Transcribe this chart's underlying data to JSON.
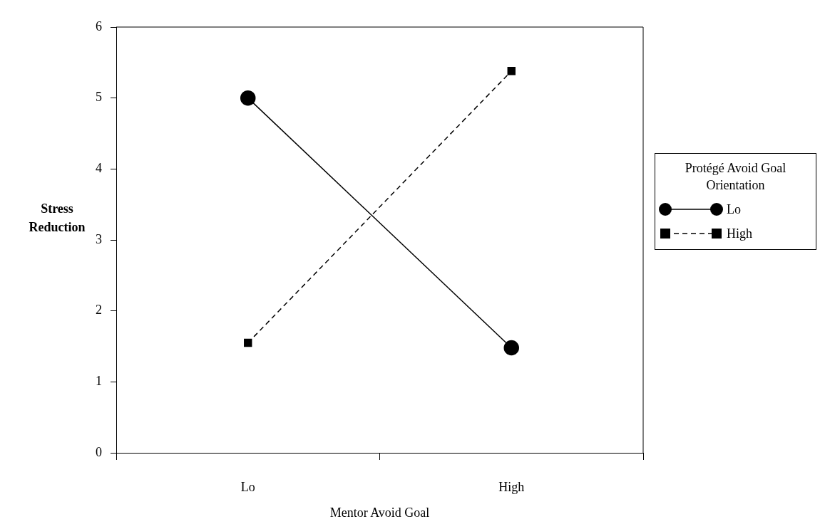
{
  "chart_data": {
    "type": "line",
    "xlabel": "Mentor Avoid Goal",
    "ylabel": "Stress Reduction",
    "legend_title": "Protégé Avoid Goal Orientation",
    "categories": [
      "Lo",
      "High"
    ],
    "ylim": [
      0,
      6
    ],
    "yticks": [
      0,
      1,
      2,
      3,
      4,
      5,
      6
    ],
    "grid": false,
    "legend": "right",
    "series": [
      {
        "name": "Lo",
        "color": "#000000",
        "values": [
          5.0,
          1.48
        ],
        "marker": "circle",
        "line_style": "solid"
      },
      {
        "name": "High",
        "color": "#000000",
        "values": [
          1.55,
          5.38
        ],
        "marker": "square",
        "line_style": "dashed"
      }
    ]
  }
}
